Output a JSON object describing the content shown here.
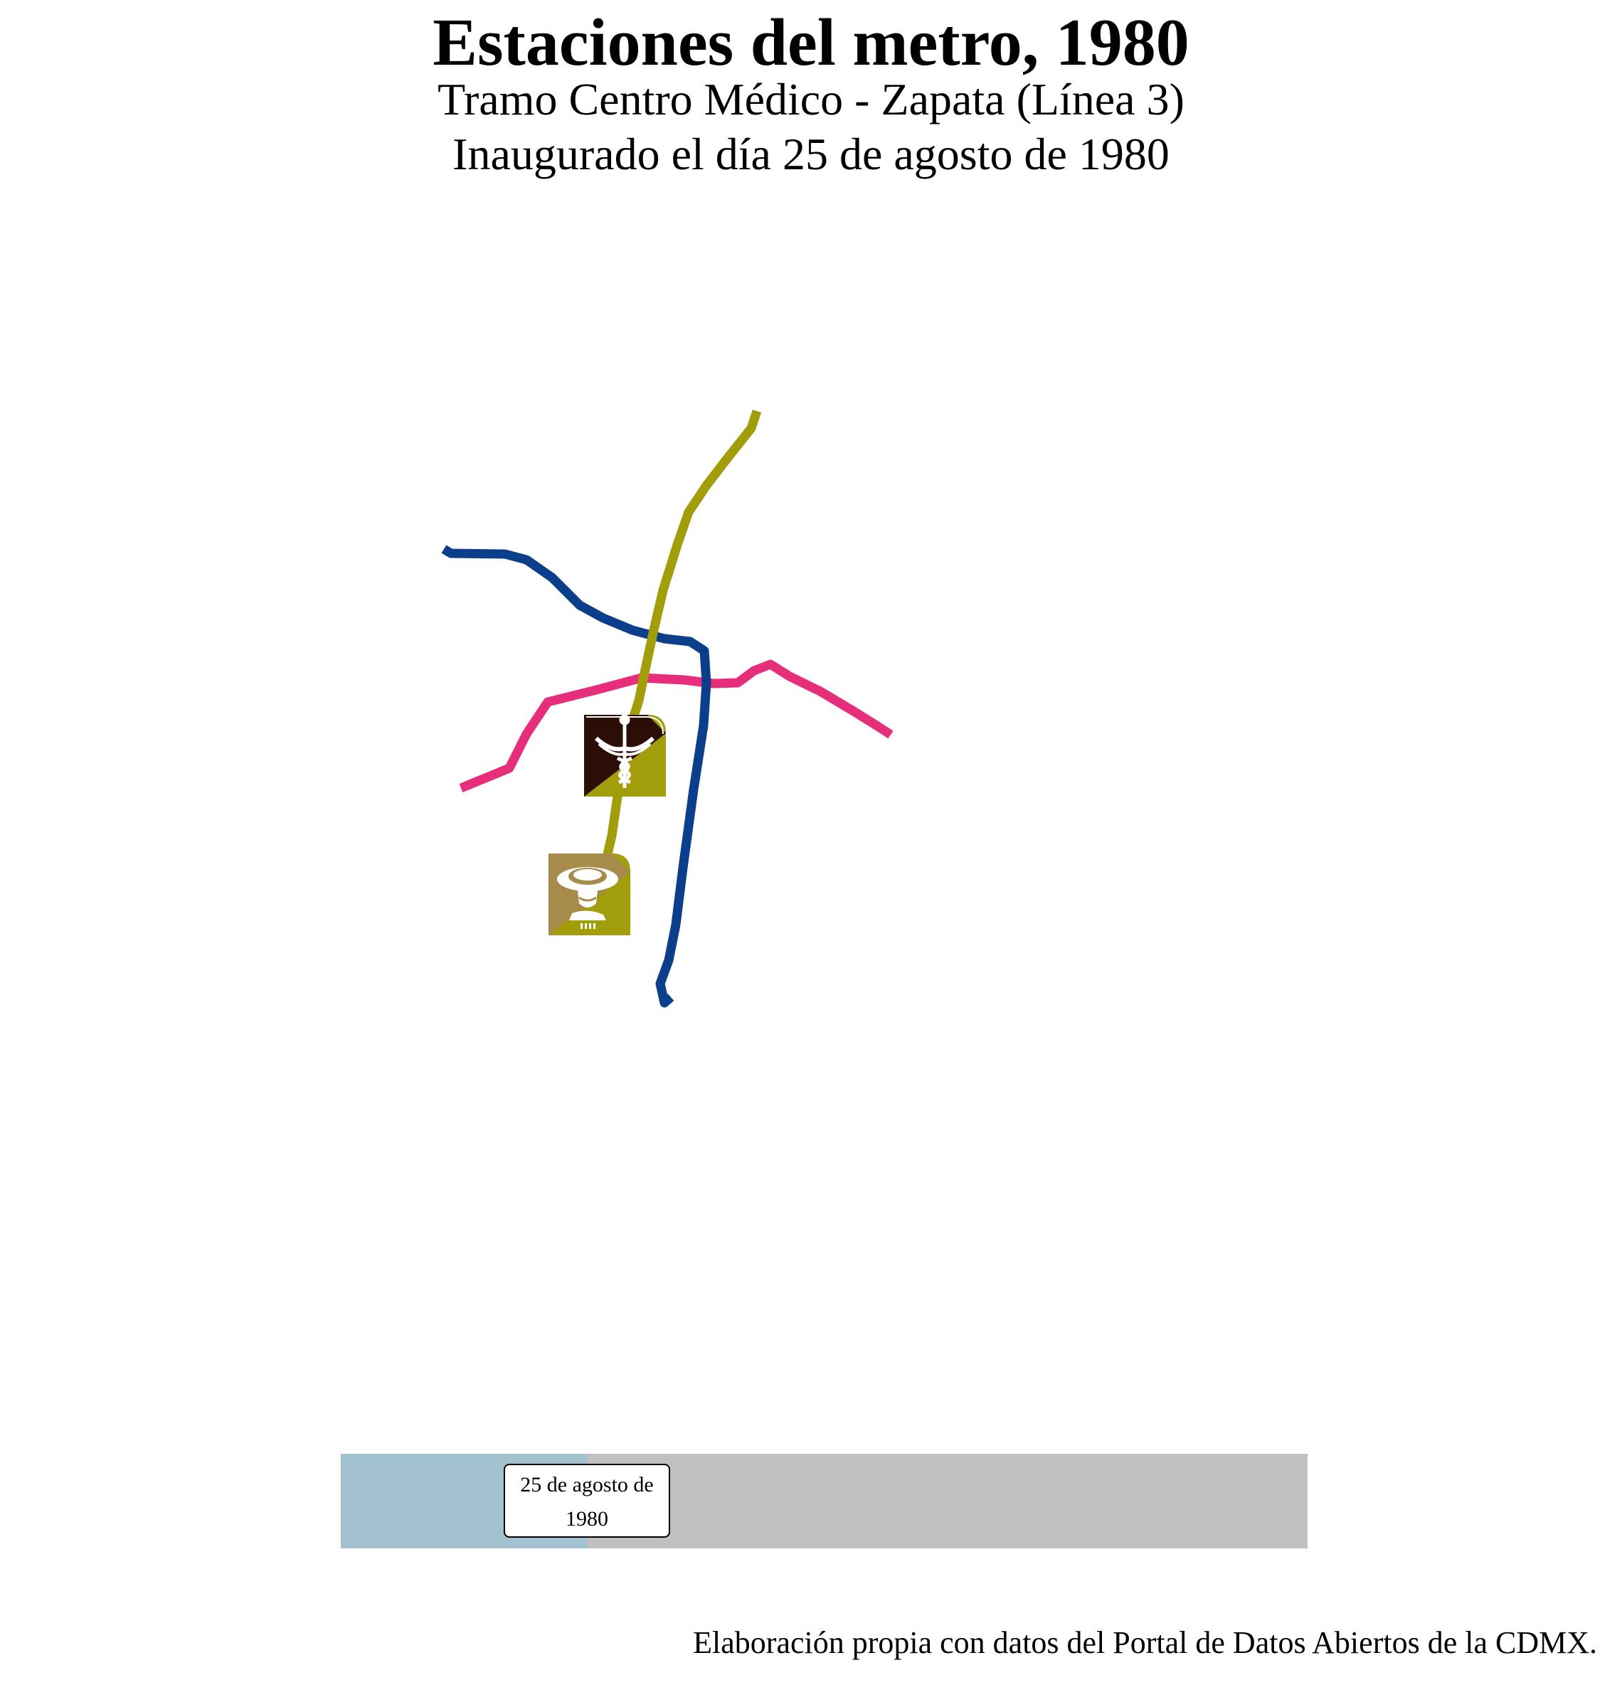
{
  "title": "Estaciones del metro, 1980",
  "subtitle_1": "Tramo Centro Médico - Zapata (Línea 3)",
  "subtitle_2": "Inaugurado el día 25 de agosto de 1980",
  "lines": [
    {
      "id": "linea-1",
      "color": "#e62e7b"
    },
    {
      "id": "linea-2",
      "color": "#0b3f8c"
    },
    {
      "id": "linea-3",
      "color": "#a19d0b"
    }
  ],
  "stations": [
    {
      "name": "Centro Médico",
      "icon": "caduceus-icon",
      "colors": [
        "#2b0e05",
        "#a19d0b"
      ]
    },
    {
      "name": "Zapata",
      "icon": "zapata-portrait-icon",
      "colors": [
        "#a68b4a",
        "#a19d0b"
      ]
    }
  ],
  "timeline": {
    "date_label": "25 de agosto de 1980",
    "progress": 0.255,
    "colors": {
      "elapsed": "#a3c2cf",
      "remaining": "#c0c0c0"
    }
  },
  "caption": "Elaboración propia con datos del Portal de Datos Abiertos de la CDMX."
}
